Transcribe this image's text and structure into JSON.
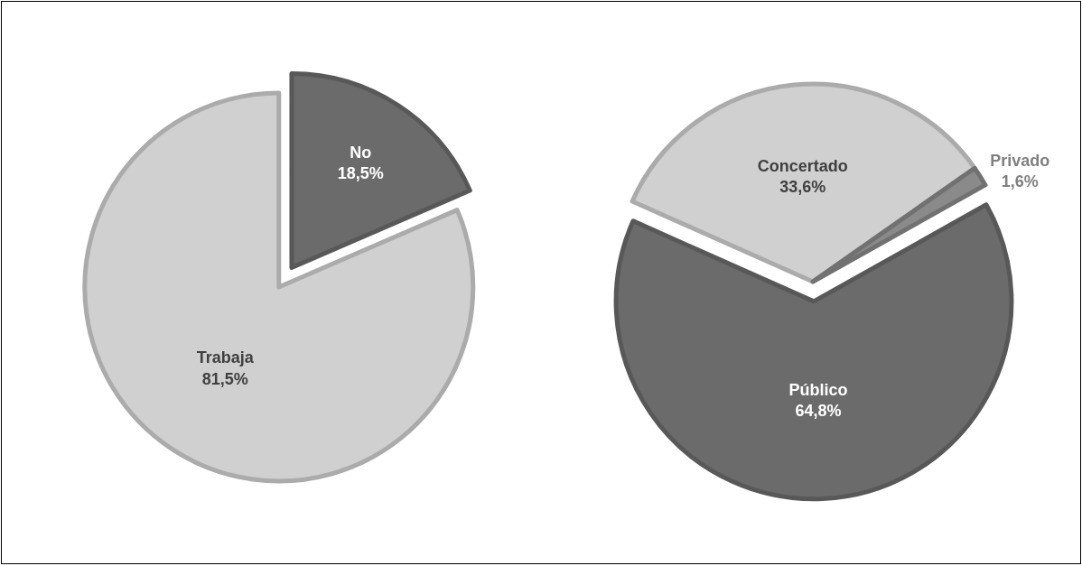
{
  "chart_data": [
    {
      "type": "pie",
      "categories": [
        "No",
        "Trabaja"
      ],
      "values": [
        18.5,
        81.5
      ],
      "colors": [
        "#6b6b6b",
        "#d0d0d0"
      ],
      "value_labels": [
        "18,5%",
        "81,5%"
      ],
      "legend": false
    },
    {
      "type": "pie",
      "categories": [
        "Concertado",
        "Privado",
        "Público"
      ],
      "values": [
        33.6,
        1.6,
        64.8
      ],
      "colors": [
        "#d0d0d0",
        "#8a8a8a",
        "#6b6b6b"
      ],
      "value_labels": [
        "33,6%",
        "1,6%",
        "64,8%"
      ],
      "legend": false
    }
  ]
}
